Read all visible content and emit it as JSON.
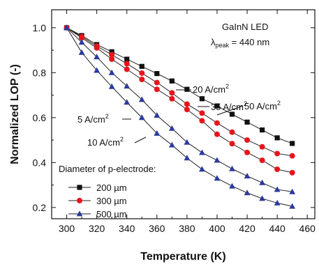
{
  "chart_data": {
    "type": "line",
    "title": "",
    "xlabel": "Temperature (K)",
    "ylabel": "Normalized LOP (-)",
    "xlim": [
      290,
      465
    ],
    "ylim": [
      0.15,
      1.08
    ],
    "xticks": [
      300,
      320,
      340,
      360,
      380,
      400,
      420,
      440,
      460
    ],
    "yticks": [
      0.2,
      0.4,
      0.6,
      0.8,
      1.0
    ],
    "ytick_labels": [
      "0.2",
      "0.4",
      "0.6",
      "0.8",
      "1.0"
    ],
    "grid": false,
    "annotation": {
      "line1": "GaInN LED",
      "line2_prefix": "λ",
      "line2_sub": "peak",
      "line2_suffix": " = 440 nm"
    },
    "current_labels": [
      {
        "text": "20 A/cm",
        "sup": "2"
      },
      {
        "text": "35 A/cm",
        "sup": "2"
      },
      {
        "text": "50 A/cm",
        "sup": "2"
      },
      {
        "text": "5 A/cm",
        "sup": "2"
      },
      {
        "text": "10 A/cm",
        "sup": "2"
      }
    ],
    "legend": {
      "title": "Diameter of p-electrode:",
      "position": "bottom-left",
      "entries": [
        {
          "label": "200 µm",
          "color": "#111111",
          "marker": "square"
        },
        {
          "label": "300 µm",
          "color": "#e8141b",
          "marker": "circle"
        },
        {
          "label": "500 µm",
          "color": "#2b3a9e",
          "marker": "triangle"
        }
      ]
    },
    "x": [
      300,
      310,
      320,
      330,
      340,
      350,
      360,
      370,
      380,
      390,
      400,
      410,
      420,
      430,
      440,
      450
    ],
    "series": [
      {
        "diameter": "200 µm",
        "current": "50 A/cm2",
        "color": "#111111",
        "marker": "square",
        "values": [
          1.0,
          0.965,
          0.925,
          0.893,
          0.86,
          0.828,
          0.796,
          0.763,
          0.726,
          0.684,
          0.652,
          0.615,
          0.58,
          0.545,
          0.51,
          0.485
        ]
      },
      {
        "diameter": "300 µm",
        "current": "35 A/cm2",
        "color": "#e8141b",
        "marker": "circle",
        "values": [
          1.0,
          0.96,
          0.918,
          0.88,
          0.84,
          0.798,
          0.756,
          0.71,
          0.66,
          0.62,
          0.576,
          0.535,
          0.5,
          0.47,
          0.44,
          0.43
        ]
      },
      {
        "diameter": "300 µm",
        "current": "20 A/cm2",
        "color": "#e8141b",
        "marker": "circle",
        "values": [
          1.0,
          0.955,
          0.91,
          0.86,
          0.815,
          0.77,
          0.726,
          0.684,
          0.636,
          0.586,
          0.526,
          0.484,
          0.445,
          0.41,
          0.37,
          0.355
        ]
      },
      {
        "diameter": "500 µm",
        "current": "10 A/cm2",
        "color": "#2b3a9e",
        "marker": "triangle",
        "values": [
          1.0,
          0.935,
          0.87,
          0.8,
          0.74,
          0.68,
          0.61,
          0.552,
          0.49,
          0.444,
          0.41,
          0.372,
          0.34,
          0.31,
          0.28,
          0.27
        ]
      },
      {
        "diameter": "500 µm",
        "current": "5 A/cm2",
        "color": "#2b3a9e",
        "marker": "triangle",
        "values": [
          1.0,
          0.89,
          0.81,
          0.738,
          0.668,
          0.6,
          0.53,
          0.478,
          0.42,
          0.37,
          0.33,
          0.295,
          0.265,
          0.24,
          0.22,
          0.205
        ]
      }
    ]
  }
}
